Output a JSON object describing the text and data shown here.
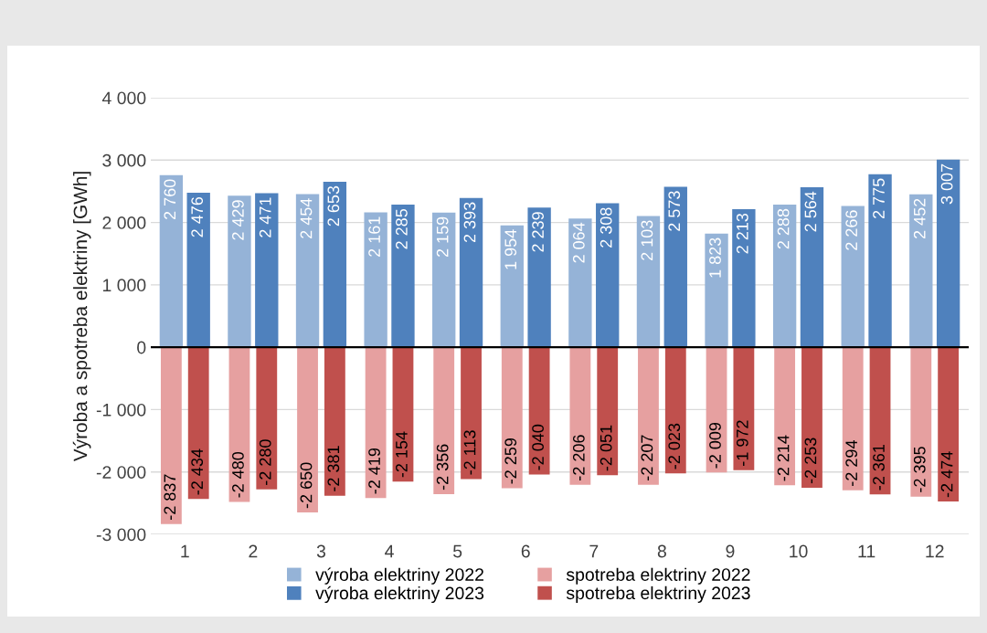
{
  "chart_data": {
    "type": "bar",
    "ylabel": "Výroba a spotreba elektriny [GWh]",
    "categories": [
      "1",
      "2",
      "3",
      "4",
      "5",
      "6",
      "7",
      "8",
      "9",
      "10",
      "11",
      "12"
    ],
    "series": [
      {
        "name": "výroba elektriny 2022",
        "color": "#95b3d7",
        "values": [
          2760,
          2429,
          2454,
          2161,
          2159,
          1954,
          2064,
          2103,
          1823,
          2288,
          2266,
          2452
        ],
        "value_labels": [
          "2 760",
          "2 429",
          "2 454",
          "2 161",
          "2 159",
          "1 954",
          "2 064",
          "2 103",
          "1 823",
          "2 288",
          "2 266",
          "2 452"
        ]
      },
      {
        "name": "výroba elektriny 2023",
        "color": "#4f81bd",
        "values": [
          2476,
          2471,
          2653,
          2285,
          2393,
          2239,
          2308,
          2573,
          2213,
          2564,
          2775,
          3007
        ],
        "value_labels": [
          "2 476",
          "2 471",
          "2 653",
          "2 285",
          "2 393",
          "2 239",
          "2 308",
          "2 573",
          "2 213",
          "2 564",
          "2 775",
          "3 007"
        ]
      },
      {
        "name": "spotreba elektriny 2022",
        "color": "#e6a0a0",
        "values": [
          -2837,
          -2480,
          -2650,
          -2419,
          -2356,
          -2259,
          -2206,
          -2207,
          -2009,
          -2214,
          -2294,
          -2395
        ],
        "value_labels": [
          "-2 837",
          "-2 480",
          "-2 650",
          "-2 419",
          "-2 356",
          "-2 259",
          "-2 206",
          "-2 207",
          "-2 009",
          "-2 214",
          "-2 294",
          "-2 395"
        ]
      },
      {
        "name": "spotreba elektriny 2023",
        "color": "#c0504d",
        "values": [
          -2434,
          -2280,
          -2381,
          -2154,
          -2113,
          -2040,
          -2051,
          -2023,
          -1972,
          -2253,
          -2361,
          -2474
        ],
        "value_labels": [
          "-2 434",
          "-2 280",
          "-2 381",
          "-2 154",
          "-2 113",
          "-2 040",
          "-2 051",
          "-2 023",
          "-1 972",
          "-2 253",
          "-2 361",
          "-2 474"
        ]
      }
    ],
    "ylim": [
      -3000,
      4000
    ],
    "yticks": [
      {
        "value": -3000,
        "label": "-3 000"
      },
      {
        "value": -2000,
        "label": "-2 000"
      },
      {
        "value": -1000,
        "label": "-1 000"
      },
      0,
      {
        "value": 1000,
        "label": "1 000"
      },
      {
        "value": 2000,
        "label": "2 000"
      },
      {
        "value": 3000,
        "label": "3 000"
      },
      {
        "value": 4000,
        "label": "4 000"
      }
    ],
    "grid": "y",
    "legend": "bottom"
  }
}
